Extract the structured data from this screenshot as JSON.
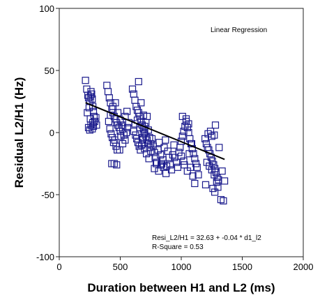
{
  "chart_data": {
    "type": "scatter",
    "title": "",
    "xlabel": "Duration between H1 and L2 (ms)",
    "ylabel": "Residual L2/H1 (Hz)",
    "xlim": [
      0,
      2000
    ],
    "ylim": [
      -100,
      100
    ],
    "x_ticks": [
      0,
      500,
      1000,
      1500,
      2000
    ],
    "y_ticks": [
      -100,
      -50,
      0,
      50,
      100
    ],
    "x_tick_labels": [
      "0",
      "500",
      "1000",
      "1500",
      "2000"
    ],
    "y_tick_labels": [
      "-100",
      "-50",
      "0",
      "50",
      "100"
    ],
    "grid": false,
    "marker": "hollow-square",
    "marker_color": "#1a1a8c",
    "fit_line_color": "#000000",
    "legend_label": "Linear Regression",
    "legend_position": "top-right",
    "equation_text": "Resi_L2/H1 = 32.63 + -0.04 * d1_l2",
    "r_square_text": "R-Square = 0.53",
    "regression": {
      "intercept": 32.63,
      "slope": -0.04,
      "x_range": [
        215,
        1355
      ]
    },
    "points": [
      [
        215,
        42
      ],
      [
        225,
        35
      ],
      [
        235,
        30
      ],
      [
        240,
        28
      ],
      [
        245,
        20
      ],
      [
        250,
        25
      ],
      [
        255,
        29
      ],
      [
        260,
        33
      ],
      [
        265,
        31
      ],
      [
        270,
        27
      ],
      [
        275,
        21
      ],
      [
        280,
        17
      ],
      [
        285,
        13
      ],
      [
        240,
        4
      ],
      [
        250,
        2
      ],
      [
        260,
        6
      ],
      [
        270,
        3
      ],
      [
        280,
        5
      ],
      [
        290,
        9
      ],
      [
        300,
        12
      ],
      [
        305,
        6
      ],
      [
        230,
        16
      ],
      [
        255,
        11
      ],
      [
        275,
        8
      ],
      [
        390,
        38
      ],
      [
        400,
        33
      ],
      [
        410,
        28
      ],
      [
        420,
        24
      ],
      [
        430,
        19
      ],
      [
        440,
        16
      ],
      [
        450,
        13
      ],
      [
        460,
        11
      ],
      [
        470,
        8
      ],
      [
        480,
        6
      ],
      [
        490,
        4
      ],
      [
        500,
        1
      ],
      [
        405,
        9
      ],
      [
        415,
        3
      ],
      [
        425,
        -1
      ],
      [
        435,
        -4
      ],
      [
        445,
        -8
      ],
      [
        455,
        -6
      ],
      [
        465,
        -11
      ],
      [
        475,
        -14
      ],
      [
        420,
        14
      ],
      [
        440,
        21
      ],
      [
        460,
        24
      ],
      [
        480,
        16
      ],
      [
        500,
        10
      ],
      [
        510,
        6
      ],
      [
        520,
        3
      ],
      [
        530,
        -2
      ],
      [
        540,
        -6
      ],
      [
        550,
        0
      ],
      [
        560,
        4
      ],
      [
        570,
        8
      ],
      [
        430,
        -25
      ],
      [
        450,
        -25
      ],
      [
        470,
        -26
      ],
      [
        495,
        -14
      ],
      [
        505,
        -3
      ],
      [
        520,
        -9
      ],
      [
        540,
        13
      ],
      [
        555,
        17
      ],
      [
        600,
        35
      ],
      [
        610,
        31
      ],
      [
        620,
        26
      ],
      [
        630,
        21
      ],
      [
        640,
        18
      ],
      [
        650,
        16
      ],
      [
        660,
        13
      ],
      [
        670,
        9
      ],
      [
        680,
        6
      ],
      [
        690,
        3
      ],
      [
        700,
        0
      ],
      [
        710,
        -3
      ],
      [
        720,
        -6
      ],
      [
        730,
        -9
      ],
      [
        740,
        -12
      ],
      [
        750,
        -15
      ],
      [
        625,
        -2
      ],
      [
        635,
        -5
      ],
      [
        645,
        -8
      ],
      [
        655,
        -11
      ],
      [
        665,
        -14
      ],
      [
        675,
        -10
      ],
      [
        685,
        -6
      ],
      [
        695,
        -1
      ],
      [
        700,
        5
      ],
      [
        710,
        8
      ],
      [
        720,
        13
      ],
      [
        730,
        2
      ],
      [
        740,
        -4
      ],
      [
        650,
        41
      ],
      [
        670,
        24
      ],
      [
        690,
        14
      ],
      [
        610,
        1
      ],
      [
        620,
        7
      ],
      [
        640,
        10
      ],
      [
        660,
        4
      ],
      [
        680,
        -4
      ],
      [
        700,
        -13
      ],
      [
        715,
        -17
      ],
      [
        735,
        -21
      ],
      [
        750,
        -9
      ],
      [
        760,
        -5
      ],
      [
        770,
        -11
      ],
      [
        780,
        -16
      ],
      [
        790,
        -20
      ],
      [
        800,
        -24
      ],
      [
        810,
        -14
      ],
      [
        820,
        -8
      ],
      [
        830,
        -18
      ],
      [
        840,
        -25
      ],
      [
        850,
        -22
      ],
      [
        860,
        -12
      ],
      [
        870,
        -6
      ],
      [
        880,
        -27
      ],
      [
        890,
        -15
      ],
      [
        900,
        -20
      ],
      [
        910,
        -26
      ],
      [
        920,
        -30
      ],
      [
        930,
        -18
      ],
      [
        940,
        -10
      ],
      [
        780,
        -29
      ],
      [
        795,
        -25
      ],
      [
        815,
        -31
      ],
      [
        835,
        -26
      ],
      [
        855,
        -28
      ],
      [
        875,
        -33
      ],
      [
        945,
        -20
      ],
      [
        960,
        -24
      ],
      [
        970,
        -28
      ],
      [
        980,
        -16
      ],
      [
        990,
        -12
      ],
      [
        1000,
        -7
      ],
      [
        1010,
        -3
      ],
      [
        1020,
        1
      ],
      [
        1030,
        5
      ],
      [
        1040,
        9
      ],
      [
        1050,
        4
      ],
      [
        1060,
        0
      ],
      [
        1070,
        -5
      ],
      [
        1080,
        -9
      ],
      [
        1090,
        -13
      ],
      [
        1100,
        -17
      ],
      [
        1110,
        -21
      ],
      [
        1120,
        -25
      ],
      [
        1130,
        -28
      ],
      [
        1140,
        -34
      ],
      [
        1010,
        13
      ],
      [
        1040,
        11
      ],
      [
        1060,
        7
      ],
      [
        1000,
        -19
      ],
      [
        1025,
        -26
      ],
      [
        1050,
        -31
      ],
      [
        1075,
        -28
      ],
      [
        1095,
        -35
      ],
      [
        1110,
        -41
      ],
      [
        1020,
        -23
      ],
      [
        1065,
        -17
      ],
      [
        1085,
        -9
      ],
      [
        1195,
        -5
      ],
      [
        1205,
        -9
      ],
      [
        1215,
        -12
      ],
      [
        1225,
        -14
      ],
      [
        1235,
        -17
      ],
      [
        1245,
        -20
      ],
      [
        1255,
        -23
      ],
      [
        1265,
        -26
      ],
      [
        1275,
        -29
      ],
      [
        1285,
        -32
      ],
      [
        1295,
        -36
      ],
      [
        1305,
        -38
      ],
      [
        1210,
        -24
      ],
      [
        1230,
        -27
      ],
      [
        1250,
        -30
      ],
      [
        1270,
        -34
      ],
      [
        1290,
        -40
      ],
      [
        1260,
        -45
      ],
      [
        1275,
        -48
      ],
      [
        1300,
        -44
      ],
      [
        1325,
        -54
      ],
      [
        1345,
        -55
      ],
      [
        1355,
        -39
      ],
      [
        1240,
        1
      ],
      [
        1250,
        -3
      ],
      [
        1280,
        6
      ],
      [
        1270,
        -2
      ],
      [
        1220,
        -1
      ],
      [
        1310,
        -12
      ],
      [
        1200,
        -42
      ],
      [
        1335,
        -31
      ]
    ]
  }
}
